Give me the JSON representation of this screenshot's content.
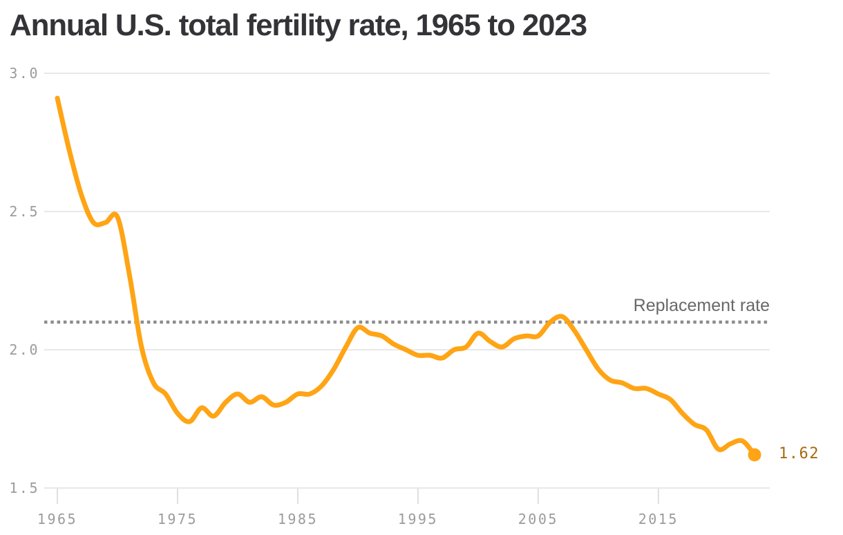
{
  "chart_data": {
    "type": "line",
    "title": "Annual U.S. total fertility rate, 1965 to 2023",
    "series_name": "U.S. total fertility rate",
    "x": [
      1965,
      1966,
      1967,
      1968,
      1969,
      1970,
      1971,
      1972,
      1973,
      1974,
      1975,
      1976,
      1977,
      1978,
      1979,
      1980,
      1981,
      1982,
      1983,
      1984,
      1985,
      1986,
      1987,
      1988,
      1989,
      1990,
      1991,
      1992,
      1993,
      1994,
      1995,
      1996,
      1997,
      1998,
      1999,
      2000,
      2001,
      2002,
      2003,
      2004,
      2005,
      2006,
      2007,
      2008,
      2009,
      2010,
      2011,
      2012,
      2013,
      2014,
      2015,
      2016,
      2017,
      2018,
      2019,
      2020,
      2021,
      2022,
      2023
    ],
    "values": [
      2.91,
      2.72,
      2.56,
      2.46,
      2.46,
      2.48,
      2.27,
      2.01,
      1.88,
      1.84,
      1.77,
      1.74,
      1.79,
      1.76,
      1.81,
      1.84,
      1.81,
      1.83,
      1.8,
      1.81,
      1.84,
      1.84,
      1.87,
      1.93,
      2.01,
      2.08,
      2.06,
      2.05,
      2.02,
      2.0,
      1.98,
      1.98,
      1.97,
      2.0,
      2.01,
      2.06,
      2.03,
      2.01,
      2.04,
      2.05,
      2.05,
      2.1,
      2.12,
      2.07,
      2.0,
      1.93,
      1.89,
      1.88,
      1.86,
      1.86,
      1.84,
      1.82,
      1.77,
      1.73,
      1.71,
      1.64,
      1.66,
      1.67,
      1.62
    ],
    "xlabel": "",
    "ylabel": "",
    "xlim": [
      1965,
      2023
    ],
    "ylim": [
      1.5,
      3.0
    ],
    "x_ticks": [
      1965,
      1975,
      1985,
      1995,
      2005,
      2015
    ],
    "y_ticks": [
      3.0,
      2.5,
      2.0,
      1.5
    ],
    "y_tick_labels": [
      "3.0",
      "2.5",
      "2.0",
      "1.5"
    ],
    "grid": "horizontal",
    "legend": "none",
    "reference_line": {
      "value": 2.1,
      "label": "Replacement rate",
      "style": "dotted"
    },
    "end_dot": {
      "year": 2023,
      "value": 1.62,
      "label": "1.62"
    },
    "colors": {
      "line": "#FFA415",
      "end_dot": "#FFA415",
      "end_label": "#A8690F",
      "title": "#333338",
      "axis_text": "#9B9B9B",
      "grid": "#E8E8E8",
      "tick": "#DFDFDF",
      "reference": "#8C8C8C",
      "annotation_text": "#68686C",
      "background": "#FFFFFF"
    }
  }
}
